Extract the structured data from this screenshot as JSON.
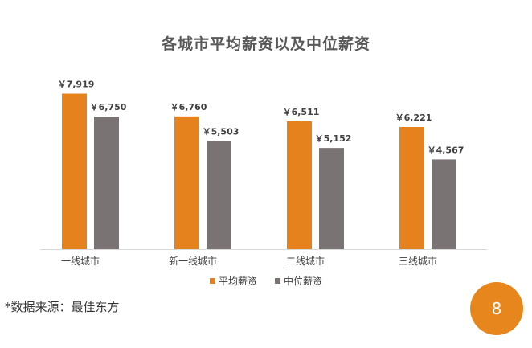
{
  "colors": {
    "average": "#e6821e",
    "median": "#7a7373",
    "badge": "#e8861e",
    "axis": "#d9d9d9",
    "text": "#404040"
  },
  "chart_data": {
    "type": "bar",
    "title": "各城市平均薪资以及中位薪资",
    "categories": [
      "一线城市",
      "新一线城市",
      "二线城市",
      "三线城市"
    ],
    "series": [
      {
        "name": "平均薪资",
        "values": [
          7919,
          6760,
          6511,
          6221
        ],
        "labels": [
          "￥7,919",
          "￥6,760",
          "￥6,511",
          "￥6,221"
        ]
      },
      {
        "name": "中位薪资",
        "values": [
          6750,
          5503,
          5152,
          4567
        ],
        "labels": [
          "￥6,750",
          "￥5,503",
          "￥5,152",
          "￥4,567"
        ]
      }
    ],
    "ylim": [
      0,
      8800
    ],
    "grid": false,
    "legend_position": "bottom"
  },
  "footer": {
    "source": "*数据来源：最佳东方",
    "page_number": "8"
  }
}
